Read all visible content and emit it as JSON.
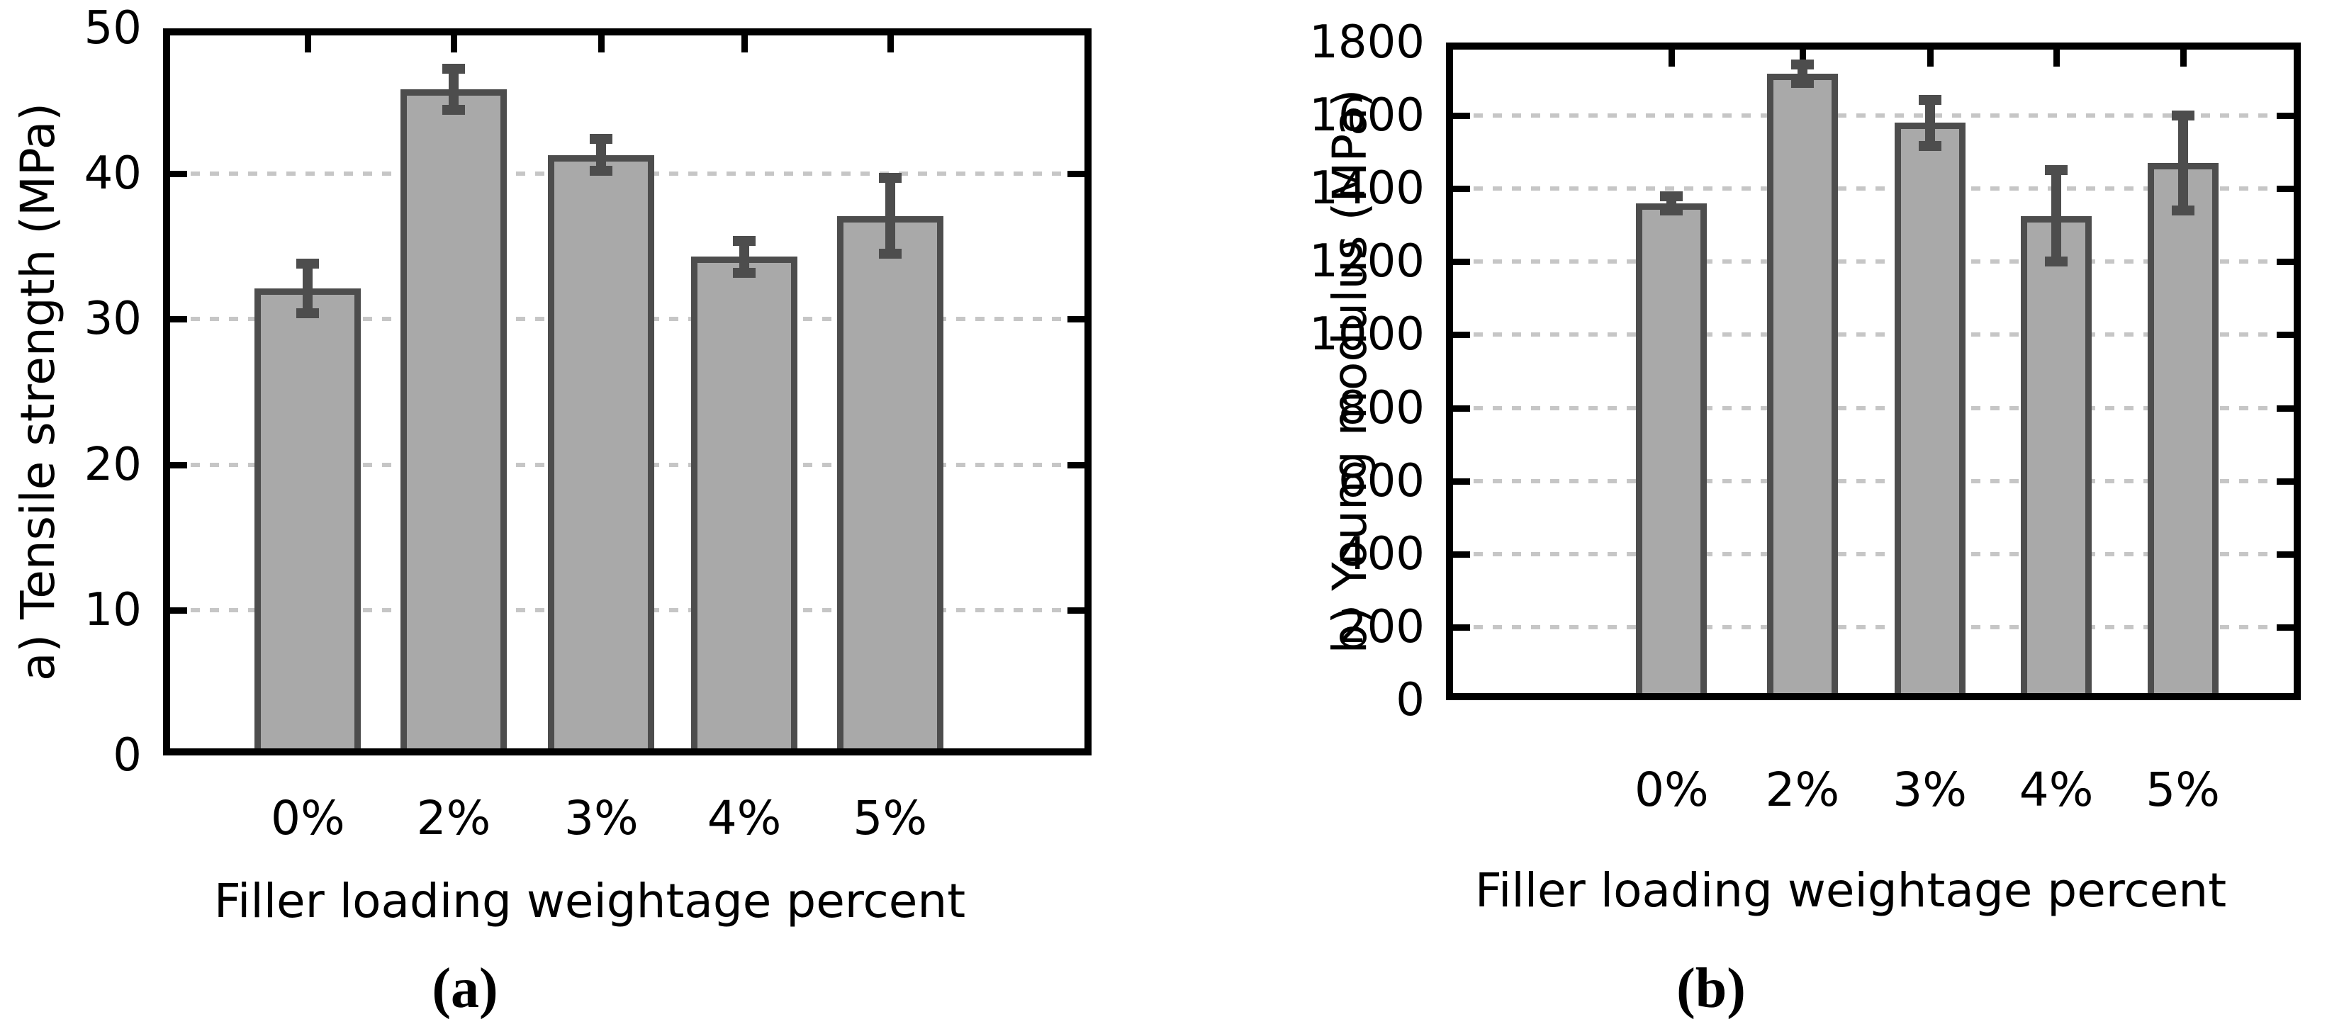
{
  "figure": {
    "background": "#ffffff",
    "description": "Two bar charts with error bars showing mechanical properties vs filler loading"
  },
  "colors": {
    "bar_fill": "#a9a9a9",
    "bar_border": "#4d4d4d",
    "error_bar": "#4d4d4d",
    "axis": "#000000",
    "gridline": "#c6c6c6",
    "text": "#000000"
  },
  "chart_data": [
    {
      "type": "bar",
      "categories": [
        "0%",
        "2%",
        "3%",
        "4%",
        "5%"
      ],
      "values": [
        32.1,
        45.8,
        41.3,
        34.3,
        37.1
      ],
      "error_bars": [
        1.7,
        1.4,
        1.1,
        1.1,
        2.6
      ],
      "ylabel": "a) Tensile strength (MPa)",
      "xlabel": "Filler loading weightage percent",
      "caption": "(a)",
      "ylim": [
        0,
        50
      ],
      "ytick_step": 10,
      "ytick_labels": [
        "0",
        "10",
        "20",
        "30",
        "40",
        "50"
      ],
      "grid": true,
      "legend": "none"
    },
    {
      "type": "bar",
      "categories": [
        "0%",
        "2%",
        "3%",
        "4%",
        "5%"
      ],
      "values": [
        1360,
        1715,
        1580,
        1325,
        1470
      ],
      "error_bars": [
        20,
        25,
        63,
        125,
        130
      ],
      "ylabel": "b) Young modulus (MPa)",
      "xlabel": "Filler loading weightage percent",
      "caption": "(b)",
      "ylim": [
        0,
        1800
      ],
      "ytick_step": 200,
      "ytick_labels": [
        "0",
        "200",
        "400",
        "600",
        "800",
        "1000",
        "1200",
        "1400",
        "1600",
        "1800"
      ],
      "grid": true,
      "legend": "none"
    }
  ]
}
